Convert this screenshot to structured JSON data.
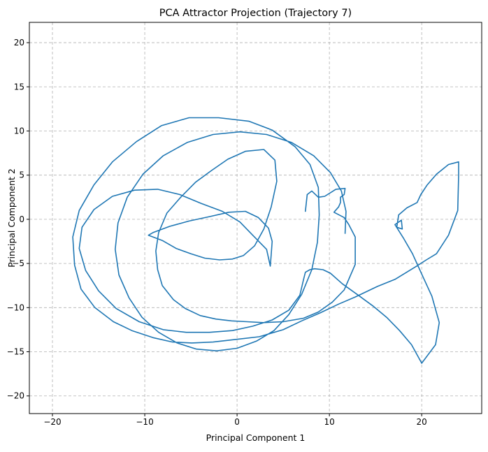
{
  "chart_data": {
    "type": "line",
    "title": "PCA Attractor Projection (Trajectory 7)",
    "xlabel": "Principal Component 1",
    "ylabel": "Principal Component 2",
    "xlim": [
      -22.5,
      26.5
    ],
    "ylim": [
      -22.0,
      22.3
    ],
    "xticks": [
      -20,
      -10,
      0,
      10,
      20
    ],
    "yticks": [
      -20,
      -15,
      -10,
      -5,
      0,
      5,
      10,
      15,
      20
    ],
    "xtick_labels": [
      "−20",
      "−10",
      "0",
      "10",
      "20"
    ],
    "ytick_labels": [
      "−20",
      "−15",
      "−10",
      "−5",
      "0",
      "5",
      "10",
      "15",
      "20"
    ],
    "grid": true,
    "line_color": "#1f77b4",
    "series": [
      {
        "values": [
          [
            7.4,
            0.9
          ],
          [
            7.6,
            2.8
          ],
          [
            8.1,
            3.2
          ],
          [
            8.8,
            2.5
          ],
          [
            9.5,
            2.6
          ],
          [
            10.7,
            3.4
          ],
          [
            11.7,
            3.5
          ],
          [
            11.6,
            2.8
          ],
          [
            11.2,
            2.5
          ],
          [
            11.2,
            1.9
          ],
          [
            11.0,
            1.4
          ],
          [
            10.5,
            0.8
          ],
          [
            11.6,
            0.2
          ],
          [
            12.1,
            -0.6
          ],
          [
            12.8,
            -2.0
          ],
          [
            12.8,
            -5.1
          ],
          [
            11.6,
            -8.0
          ],
          [
            10.3,
            -9.4
          ],
          [
            8.8,
            -10.5
          ],
          [
            7.2,
            -11.2
          ],
          [
            5.0,
            -11.6
          ],
          [
            2.8,
            -11.7
          ],
          [
            1.1,
            -11.6
          ],
          [
            -0.6,
            -11.5
          ],
          [
            -2.3,
            -11.3
          ],
          [
            -4.0,
            -10.9
          ],
          [
            -5.6,
            -10.1
          ],
          [
            -6.9,
            -9.1
          ],
          [
            -8.1,
            -7.5
          ],
          [
            -8.6,
            -5.7
          ],
          [
            -8.8,
            -3.6
          ],
          [
            -8.5,
            -1.5
          ],
          [
            -7.6,
            0.7
          ],
          [
            -6.1,
            2.5
          ],
          [
            -4.5,
            4.2
          ],
          [
            -2.8,
            5.5
          ],
          [
            -1.0,
            6.8
          ],
          [
            0.9,
            7.7
          ],
          [
            2.9,
            7.9
          ],
          [
            4.1,
            6.7
          ],
          [
            4.3,
            4.3
          ],
          [
            3.7,
            1.4
          ],
          [
            2.9,
            -1.1
          ],
          [
            1.9,
            -3.0
          ],
          [
            0.7,
            -4.1
          ],
          [
            -0.5,
            -4.5
          ],
          [
            -1.9,
            -4.6
          ],
          [
            -3.5,
            -4.4
          ],
          [
            -5.0,
            -3.9
          ],
          [
            -6.6,
            -3.3
          ],
          [
            -8.1,
            -2.4
          ],
          [
            -9.6,
            -1.8
          ],
          [
            -9.1,
            -1.5
          ],
          [
            -7.3,
            -0.8
          ],
          [
            -5.2,
            -0.2
          ],
          [
            -3.0,
            0.3
          ],
          [
            -0.9,
            0.8
          ],
          [
            0.9,
            0.9
          ],
          [
            2.3,
            0.2
          ],
          [
            3.4,
            -1.0
          ],
          [
            3.8,
            -2.5
          ],
          [
            3.7,
            -4.0
          ],
          [
            3.6,
            -5.3
          ],
          [
            3.2,
            -3.4
          ],
          [
            1.7,
            -1.8
          ],
          [
            0.3,
            -0.3
          ],
          [
            -1.6,
            0.9
          ],
          [
            -3.9,
            1.8
          ],
          [
            -6.2,
            2.8
          ],
          [
            -8.6,
            3.4
          ],
          [
            -11.1,
            3.3
          ],
          [
            -13.5,
            2.6
          ],
          [
            -15.5,
            1.1
          ],
          [
            -16.8,
            -0.9
          ],
          [
            -17.1,
            -3.3
          ],
          [
            -16.4,
            -5.8
          ],
          [
            -15.0,
            -8.1
          ],
          [
            -13.1,
            -10.1
          ],
          [
            -10.6,
            -11.6
          ],
          [
            -8.0,
            -12.5
          ],
          [
            -5.5,
            -12.8
          ],
          [
            -3.0,
            -12.8
          ],
          [
            -0.5,
            -12.6
          ],
          [
            1.7,
            -12.1
          ],
          [
            3.8,
            -11.4
          ],
          [
            5.6,
            -10.3
          ],
          [
            6.8,
            -8.6
          ],
          [
            7.2,
            -6.8
          ],
          [
            7.4,
            -6.0
          ],
          [
            7.9,
            -5.7
          ],
          [
            8.4,
            -5.6
          ],
          [
            9.3,
            -5.7
          ],
          [
            10.1,
            -6.1
          ],
          [
            11.4,
            -7.3
          ],
          [
            13.0,
            -8.5
          ],
          [
            14.7,
            -9.8
          ],
          [
            16.2,
            -11.1
          ],
          [
            17.6,
            -12.6
          ],
          [
            18.9,
            -14.2
          ],
          [
            20.0,
            -16.3
          ]
        ]
      },
      {
        "values": [
          [
            20.0,
            -16.3
          ],
          [
            21.5,
            -14.2
          ],
          [
            21.9,
            -11.7
          ],
          [
            21.1,
            -8.7
          ],
          [
            20.0,
            -6.2
          ],
          [
            19.0,
            -3.9
          ],
          [
            18.0,
            -2.1
          ],
          [
            17.1,
            -0.6
          ],
          [
            17.8,
            -0.1
          ],
          [
            17.9,
            -1.1
          ],
          [
            17.3,
            -0.9
          ],
          [
            17.5,
            0.5
          ],
          [
            18.4,
            1.3
          ],
          [
            19.5,
            1.9
          ],
          [
            19.9,
            2.8
          ],
          [
            20.6,
            3.9
          ],
          [
            21.6,
            5.1
          ],
          [
            22.9,
            6.2
          ],
          [
            24.0,
            6.5
          ],
          [
            24.0,
            5.0
          ],
          [
            23.9,
            1.0
          ],
          [
            22.9,
            -1.8
          ],
          [
            21.6,
            -3.9
          ],
          [
            20.5,
            -4.6
          ],
          [
            19.3,
            -5.4
          ],
          [
            17.1,
            -6.8
          ],
          [
            15.2,
            -7.6
          ],
          [
            12.8,
            -8.8
          ],
          [
            11.0,
            -9.6
          ],
          [
            9.0,
            -10.6
          ],
          [
            7.0,
            -11.5
          ],
          [
            5.0,
            -12.5
          ],
          [
            2.4,
            -13.3
          ],
          [
            -0.1,
            -13.6
          ],
          [
            -2.6,
            -13.9
          ],
          [
            -4.9,
            -14.0
          ],
          [
            -7.0,
            -13.9
          ],
          [
            -9.1,
            -13.4
          ],
          [
            -11.4,
            -12.6
          ],
          [
            -13.4,
            -11.6
          ],
          [
            -15.4,
            -10.0
          ],
          [
            -16.9,
            -7.9
          ],
          [
            -17.6,
            -5.2
          ],
          [
            -17.8,
            -2.0
          ],
          [
            -17.1,
            1.0
          ],
          [
            -15.5,
            3.9
          ],
          [
            -13.5,
            6.5
          ],
          [
            -10.9,
            8.8
          ],
          [
            -8.2,
            10.6
          ],
          [
            -5.2,
            11.5
          ],
          [
            -2.0,
            11.5
          ],
          [
            1.3,
            11.1
          ],
          [
            3.8,
            10.1
          ],
          [
            6.3,
            8.2
          ],
          [
            7.9,
            6.2
          ],
          [
            8.8,
            3.6
          ],
          [
            8.9,
            0.5
          ],
          [
            8.7,
            -2.6
          ],
          [
            8.1,
            -5.7
          ],
          [
            7.0,
            -8.5
          ],
          [
            5.6,
            -10.8
          ],
          [
            4.0,
            -12.6
          ],
          [
            2.1,
            -13.8
          ],
          [
            0.0,
            -14.6
          ],
          [
            -2.2,
            -14.9
          ],
          [
            -4.4,
            -14.7
          ],
          [
            -6.5,
            -14.0
          ],
          [
            -8.5,
            -12.8
          ],
          [
            -10.3,
            -11.1
          ],
          [
            -11.7,
            -8.9
          ],
          [
            -12.8,
            -6.3
          ],
          [
            -13.2,
            -3.4
          ],
          [
            -12.9,
            -0.4
          ],
          [
            -11.9,
            2.5
          ],
          [
            -10.2,
            5.1
          ],
          [
            -8.0,
            7.2
          ],
          [
            -5.4,
            8.7
          ],
          [
            -2.6,
            9.6
          ],
          [
            0.3,
            9.9
          ],
          [
            3.2,
            9.6
          ],
          [
            5.9,
            8.7
          ],
          [
            8.3,
            7.2
          ],
          [
            10.1,
            5.3
          ],
          [
            11.3,
            3.2
          ],
          [
            11.8,
            0.9
          ],
          [
            11.7,
            -1.6
          ]
        ]
      }
    ]
  }
}
